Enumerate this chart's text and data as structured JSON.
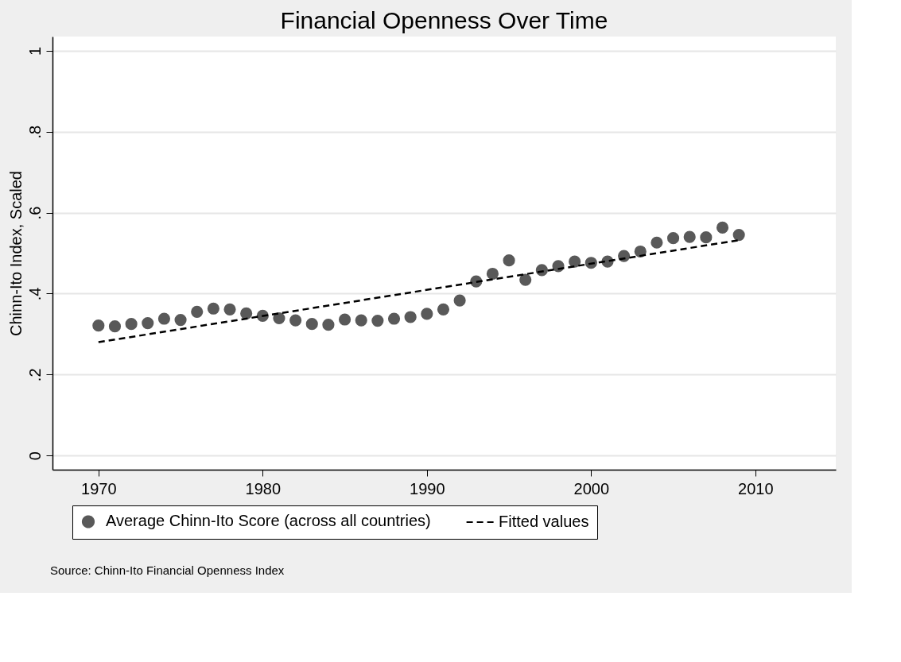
{
  "chart_data": {
    "type": "scatter",
    "title": "Financial Openness Over Time",
    "ylabel": "Chinn-Ito Index, Scaled",
    "x": [
      1970,
      1971,
      1972,
      1973,
      1974,
      1975,
      1976,
      1977,
      1978,
      1979,
      1980,
      1981,
      1982,
      1983,
      1984,
      1985,
      1986,
      1987,
      1988,
      1989,
      1990,
      1991,
      1992,
      1993,
      1994,
      1995,
      1996,
      1997,
      1998,
      1999,
      2000,
      2001,
      2002,
      2003,
      2004,
      2005,
      2006,
      2007,
      2008,
      2009
    ],
    "series": [
      {
        "name": "Average Chinn-Ito Score (across all countries)",
        "marker": "circle",
        "color": "#595959",
        "values": [
          0.321,
          0.319,
          0.325,
          0.327,
          0.338,
          0.335,
          0.355,
          0.363,
          0.361,
          0.351,
          0.345,
          0.339,
          0.334,
          0.325,
          0.323,
          0.336,
          0.334,
          0.333,
          0.338,
          0.342,
          0.35,
          0.361,
          0.383,
          0.43,
          0.449,
          0.482,
          0.434,
          0.458,
          0.468,
          0.479,
          0.476,
          0.479,
          0.493,
          0.504,
          0.526,
          0.537,
          0.54,
          0.539,
          0.563,
          0.545
        ]
      },
      {
        "name": "Fitted values",
        "type": "line",
        "line_style": "dashed",
        "color": "#000000",
        "x": [
          1970,
          2009
        ],
        "values": [
          0.28,
          0.532
        ]
      }
    ],
    "xlim": [
      1967.2,
      2014.9
    ],
    "xticks": [
      1970,
      1980,
      1990,
      2000,
      2010
    ],
    "ylim": [
      -0.035,
      1.035
    ],
    "yticks": [
      0,
      {
        "value": 0.2,
        "label": ".2"
      },
      {
        "value": 0.4,
        "label": ".4"
      },
      {
        "value": 0.6,
        "label": ".6"
      },
      {
        "value": 0.8,
        "label": ".8"
      },
      1
    ],
    "grid": "y",
    "legend": "bottom",
    "annotations": [
      "Source: Chinn-Ito Financial Openness Index"
    ]
  }
}
